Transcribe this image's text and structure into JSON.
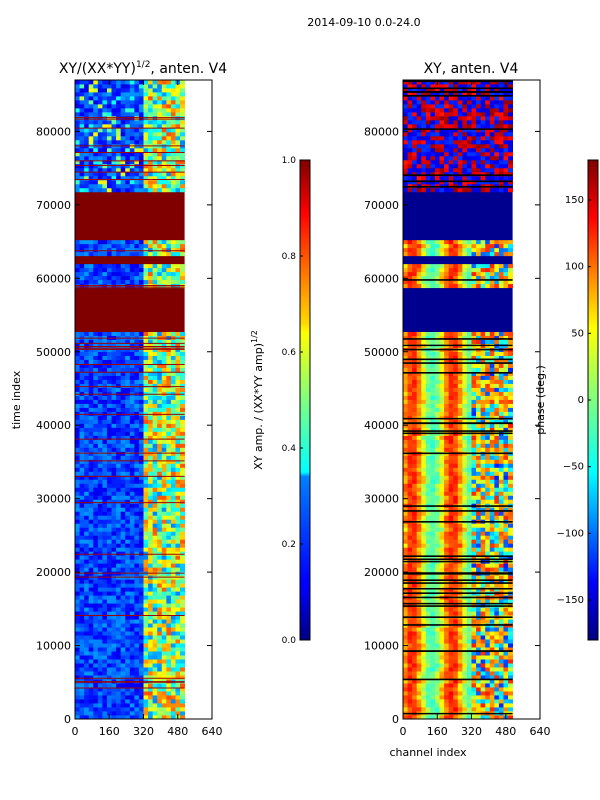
{
  "suptitle": "2014-09-10 0.0-24.0",
  "chart_data": [
    {
      "type": "heatmap",
      "title_main": "XY/(XX*YY)",
      "title_sup": "1/2",
      "title_rest": ", anten. V4",
      "ylabel": "time index",
      "xlim": [
        0,
        640
      ],
      "ylim": [
        0,
        87000
      ],
      "xticks": [
        0,
        160,
        320,
        480,
        640
      ],
      "yticks": [
        0,
        10000,
        20000,
        30000,
        40000,
        50000,
        60000,
        70000,
        80000
      ],
      "data_channel_range": [
        0,
        512
      ],
      "colorbar": {
        "label_main": "XY amp. / (XX*YY amp)",
        "label_sup": "1/2",
        "range": [
          0.0,
          1.0
        ],
        "ticks": [
          0.0,
          0.2,
          0.4,
          0.6,
          0.8,
          1.0
        ],
        "tick_labels": [
          "0.0",
          "0.2",
          "0.4",
          "0.6",
          "0.8",
          "1.0"
        ]
      },
      "saturated_time_blocks": [
        [
          52800,
          58500
        ],
        [
          61800,
          63000
        ],
        [
          65200,
          72000
        ]
      ]
    },
    {
      "type": "heatmap",
      "title": "XY, anten. V4",
      "xlabel": "channel index",
      "xlim": [
        0,
        640
      ],
      "ylim": [
        0,
        87000
      ],
      "xticks": [
        0,
        160,
        320,
        480,
        640
      ],
      "yticks": [
        0,
        10000,
        20000,
        30000,
        40000,
        50000,
        60000,
        70000,
        80000
      ],
      "data_channel_range": [
        0,
        512
      ],
      "colorbar": {
        "label": "phase (deg.)",
        "range": [
          -180,
          180
        ],
        "ticks": [
          150,
          100,
          50,
          0,
          -50,
          -100,
          -150
        ],
        "tick_labels": [
          "150",
          "100",
          "50",
          "0",
          "−50",
          "−100",
          "−150"
        ]
      },
      "flat_phase_blocks": [
        [
          52800,
          58500
        ],
        [
          61800,
          63000
        ],
        [
          65200,
          72000
        ]
      ]
    }
  ],
  "colors": {
    "axis": "#000000",
    "background": "#ffffff"
  }
}
